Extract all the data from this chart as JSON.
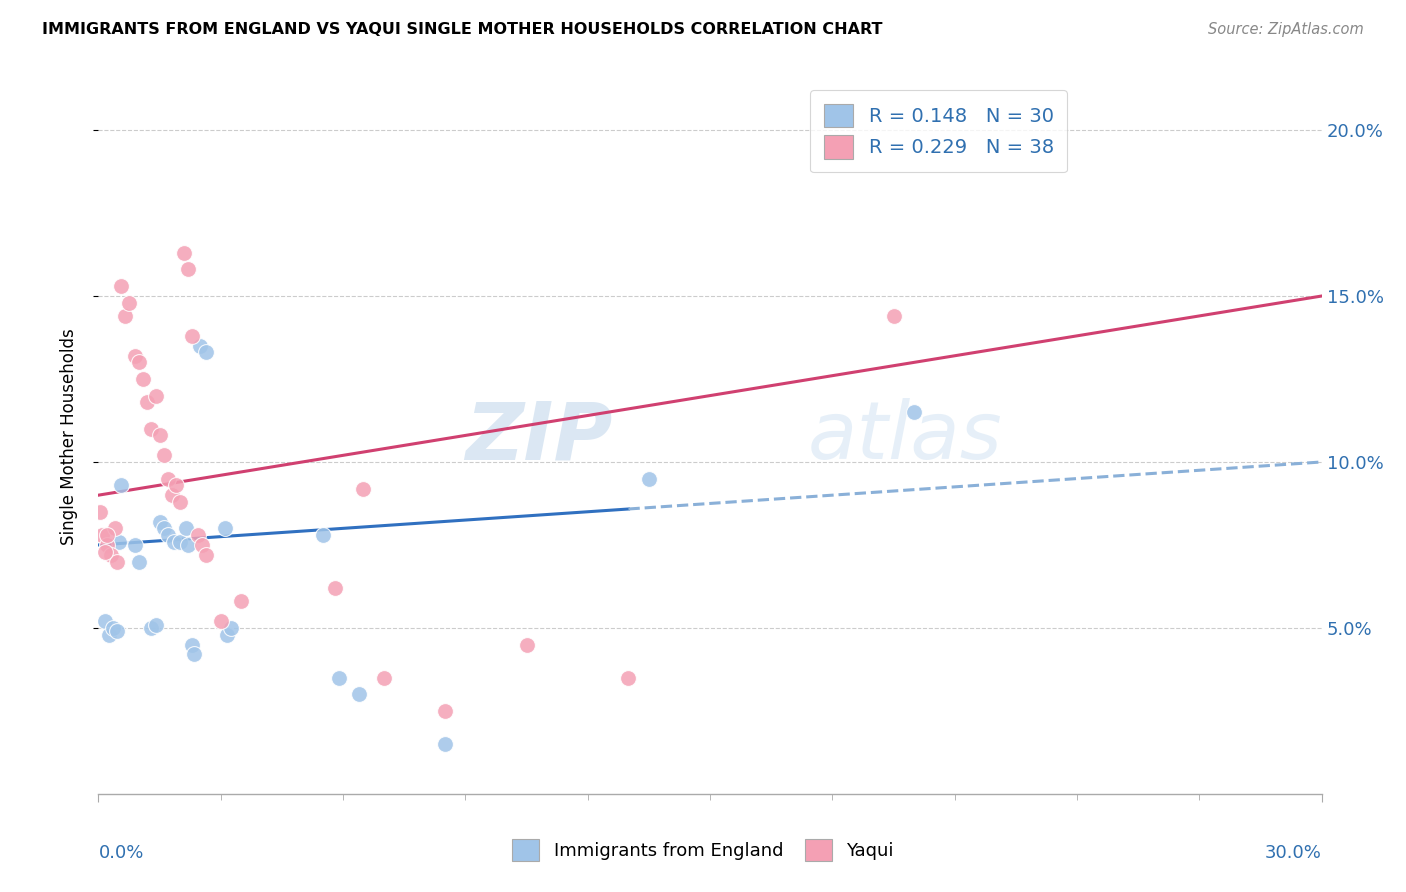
{
  "title": "IMMIGRANTS FROM ENGLAND VS YAQUI SINGLE MOTHER HOUSEHOLDS CORRELATION CHART",
  "source": "Source: ZipAtlas.com",
  "ylabel": "Single Mother Households",
  "yaxis_tick_values": [
    5.0,
    10.0,
    15.0,
    20.0
  ],
  "xlim": [
    0.0,
    30.0
  ],
  "ylim": [
    0.0,
    21.5
  ],
  "england_color": "#a0c4e8",
  "yaqui_color": "#f4a0b4",
  "england_line_color": "#3070c0",
  "yaqui_line_color": "#d04070",
  "england_line_dash_color": "#8ab0d8",
  "watermark_text": "ZIPatlas",
  "england_points": [
    [
      0.15,
      5.2
    ],
    [
      0.25,
      4.8
    ],
    [
      0.35,
      5.0
    ],
    [
      0.45,
      4.9
    ],
    [
      0.5,
      7.6
    ],
    [
      0.55,
      9.3
    ],
    [
      0.9,
      7.5
    ],
    [
      1.0,
      7.0
    ],
    [
      1.3,
      5.0
    ],
    [
      1.4,
      5.1
    ],
    [
      1.5,
      8.2
    ],
    [
      1.6,
      8.0
    ],
    [
      1.7,
      7.8
    ],
    [
      1.85,
      7.6
    ],
    [
      2.0,
      7.6
    ],
    [
      2.15,
      8.0
    ],
    [
      2.2,
      7.5
    ],
    [
      2.3,
      4.5
    ],
    [
      2.35,
      4.2
    ],
    [
      2.5,
      13.5
    ],
    [
      2.65,
      13.3
    ],
    [
      3.1,
      8.0
    ],
    [
      3.15,
      4.8
    ],
    [
      3.25,
      5.0
    ],
    [
      5.5,
      7.8
    ],
    [
      5.9,
      3.5
    ],
    [
      6.4,
      3.0
    ],
    [
      8.5,
      1.5
    ],
    [
      13.5,
      9.5
    ],
    [
      20.0,
      11.5
    ]
  ],
  "yaqui_points": [
    [
      0.05,
      8.5
    ],
    [
      0.1,
      7.8
    ],
    [
      0.2,
      7.5
    ],
    [
      0.3,
      7.2
    ],
    [
      0.4,
      8.0
    ],
    [
      0.45,
      7.0
    ],
    [
      0.55,
      15.3
    ],
    [
      0.65,
      14.4
    ],
    [
      0.75,
      14.8
    ],
    [
      0.9,
      13.2
    ],
    [
      1.0,
      13.0
    ],
    [
      1.1,
      12.5
    ],
    [
      1.2,
      11.8
    ],
    [
      1.3,
      11.0
    ],
    [
      1.4,
      12.0
    ],
    [
      1.5,
      10.8
    ],
    [
      1.6,
      10.2
    ],
    [
      1.7,
      9.5
    ],
    [
      1.8,
      9.0
    ],
    [
      1.9,
      9.3
    ],
    [
      2.0,
      8.8
    ],
    [
      2.1,
      16.3
    ],
    [
      2.2,
      15.8
    ],
    [
      2.3,
      13.8
    ],
    [
      2.45,
      7.8
    ],
    [
      2.55,
      7.5
    ],
    [
      2.65,
      7.2
    ],
    [
      3.0,
      5.2
    ],
    [
      3.5,
      5.8
    ],
    [
      5.8,
      6.2
    ],
    [
      6.5,
      9.2
    ],
    [
      7.0,
      3.5
    ],
    [
      8.5,
      2.5
    ],
    [
      10.5,
      4.5
    ],
    [
      13.0,
      3.5
    ],
    [
      19.5,
      14.4
    ],
    [
      0.15,
      7.3
    ],
    [
      0.22,
      7.8
    ]
  ],
  "england_R": 0.148,
  "yaqui_R": 0.229,
  "england_N": 30,
  "yaqui_N": 38,
  "england_line_y0": 7.5,
  "england_line_y30": 10.0,
  "yaqui_line_y0": 9.0,
  "yaqui_line_y30": 15.0,
  "england_solid_xmax": 13.0
}
